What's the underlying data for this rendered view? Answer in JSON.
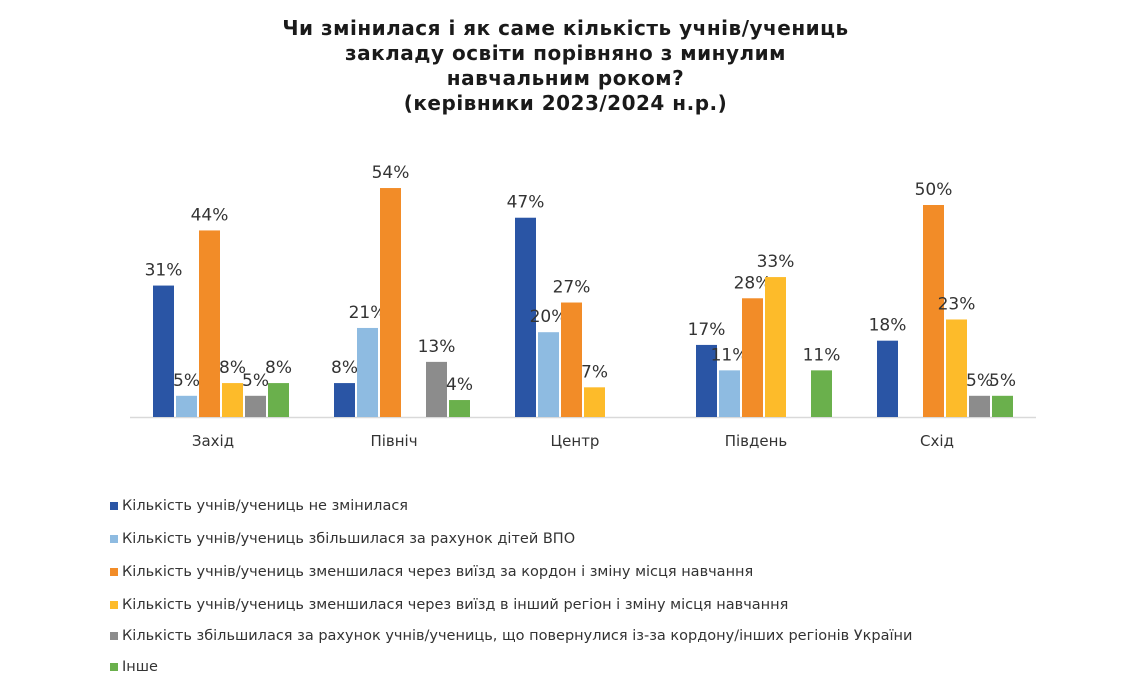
{
  "chart_data": {
    "type": "bar",
    "title_lines": [
      "Чи змінилася і як саме кількість учнів/учениць",
      "закладу освіти порівняно з минулим",
      "навчальним роком?",
      "(керівники 2023/2024 н.р.)"
    ],
    "xlabel": "",
    "ylabel": "",
    "ylim": [
      0,
      60
    ],
    "grid": false,
    "legend_position": "bottom",
    "categories": [
      "Захід",
      "Північ",
      "Центр",
      "Південь",
      "Схід"
    ],
    "series": [
      {
        "name": "Кількість учнів/учениць не змінилася",
        "color": "#2A55A5",
        "values": [
          31,
          8,
          47,
          17,
          18
        ]
      },
      {
        "name": "Кількість учнів/учениць збільшилася за рахунок дітей ВПО",
        "color": "#8EBBE1",
        "values": [
          5,
          21,
          20,
          11,
          null
        ]
      },
      {
        "name": "Кількість учнів/учениць зменшилася через виїзд за кордон і зміну місця навчання",
        "color": "#F28C28",
        "values": [
          44,
          54,
          27,
          28,
          50
        ]
      },
      {
        "name": "Кількість учнів/учениць зменшилася через виїзд в інший регіон і зміну місця навчання",
        "color": "#FDBB2A",
        "values": [
          8,
          null,
          7,
          33,
          23
        ]
      },
      {
        "name": "Кількість збільшилася за рахунок учнів/учениць, що повернулися із-за кордону/інших регіонів України",
        "color": "#8C8C8C",
        "values": [
          5,
          13,
          null,
          null,
          5
        ]
      },
      {
        "name": "Інше",
        "color": "#6AB04C",
        "values": [
          8,
          4,
          null,
          11,
          5
        ]
      }
    ],
    "value_suffix": "%"
  }
}
